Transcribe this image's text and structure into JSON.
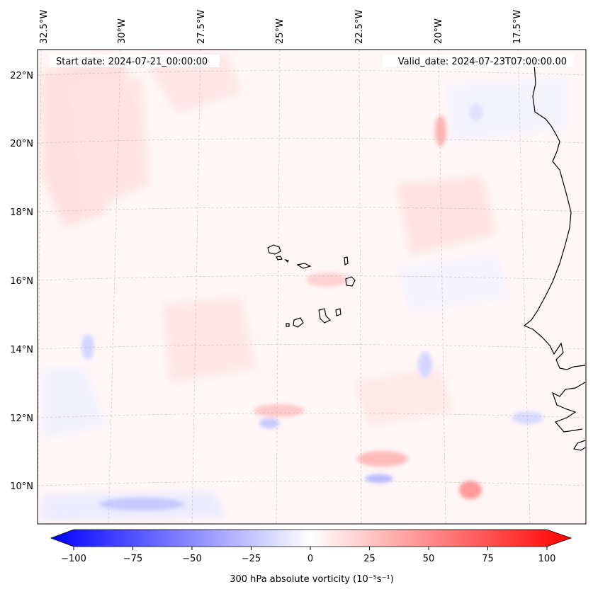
{
  "header": {
    "start_date": "Start date: 2024-07-21_00:00:00",
    "valid_date": "Valid_date: 2024-07-23T07:00:00.00"
  },
  "map": {
    "lon_labels": [
      "32.5°W",
      "30°W",
      "27.5°W",
      "25°W",
      "22.5°W",
      "20°W",
      "17.5°W"
    ],
    "lat_labels": [
      "22°N",
      "20°N",
      "18°N",
      "16°N",
      "14°N",
      "12°N",
      "10°N"
    ],
    "field_colors": {
      "weak_positive": "#ffe8e8",
      "moderate_positive": "#ffc8c8",
      "weak_negative": "#eef0ff",
      "moderate_negative": "#c6c8ff",
      "coastline": "#000000"
    }
  },
  "colorbar": {
    "label": "300 hPa absolute vorticity (10⁻⁵s⁻¹)",
    "min": -100,
    "max": 100,
    "ticks": [
      "−100",
      "−75",
      "−50",
      "−25",
      "0",
      "25",
      "50",
      "75",
      "100"
    ],
    "low_color": "#0000ff",
    "mid_color": "#ffffff",
    "high_color": "#ff0000"
  }
}
